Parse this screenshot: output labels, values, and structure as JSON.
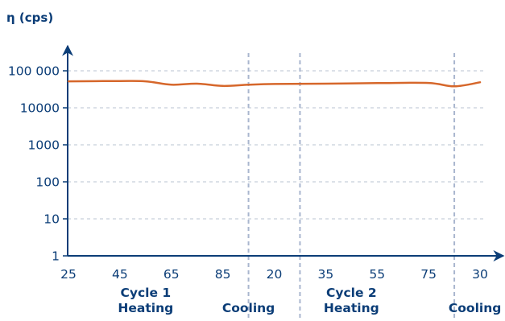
{
  "chart_data": {
    "type": "line",
    "ylabel": "η (cps)",
    "yscale": "log",
    "ylim": [
      1,
      100000
    ],
    "y_ticks": [
      {
        "value": 1,
        "label": "1"
      },
      {
        "value": 10,
        "label": "10"
      },
      {
        "value": 100,
        "label": "100"
      },
      {
        "value": 1000,
        "label": "1000"
      },
      {
        "value": 10000,
        "label": "10000"
      },
      {
        "value": 100000,
        "label": "100 000"
      }
    ],
    "x_ticks": [
      "25",
      "45",
      "65",
      "85",
      "20",
      "35",
      "55",
      "75",
      "30"
    ],
    "section_dividers_after_tick": [
      3,
      4,
      7
    ],
    "annotations": [
      {
        "lines": [
          "Cycle 1",
          "Heating"
        ],
        "at_tick": 1.5
      },
      {
        "lines": [
          "Cooling"
        ],
        "at_tick": 3.5
      },
      {
        "lines": [
          "Cycle 2",
          "Heating"
        ],
        "at_tick": 5.5
      },
      {
        "lines": [
          "Cooling"
        ],
        "at_tick": 7.9
      }
    ],
    "grid": "horizontal dashed",
    "colors": {
      "series": "#d6672b",
      "axis": "#0b3d77",
      "grid": "#b9c3d2",
      "divider": "#a9b6ce"
    },
    "series": [
      {
        "points": [
          {
            "x": 0,
            "y": 52000
          },
          {
            "x": 1,
            "y": 53000
          },
          {
            "x": 1.5,
            "y": 52000
          },
          {
            "x": 2,
            "y": 42000
          },
          {
            "x": 2.5,
            "y": 45000
          },
          {
            "x": 3,
            "y": 39000
          },
          {
            "x": 3.5,
            "y": 42000
          },
          {
            "x": 4,
            "y": 44000
          },
          {
            "x": 5,
            "y": 45000
          },
          {
            "x": 6,
            "y": 46500
          },
          {
            "x": 7,
            "y": 47000
          },
          {
            "x": 7.5,
            "y": 38000
          },
          {
            "x": 8,
            "y": 49000
          }
        ]
      }
    ]
  }
}
